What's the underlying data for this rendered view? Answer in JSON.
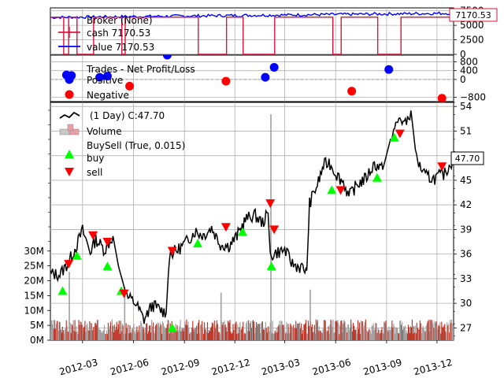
{
  "chart_data": [
    {
      "type": "line",
      "panel": "broker",
      "legend": {
        "title": "Broker (None)",
        "placement": "top-left",
        "entries": [
          "cash 7170.53",
          "value 7170.53"
        ]
      },
      "series": [
        {
          "name": "cash",
          "color": "#dc143c",
          "levels": [
            0,
            6400
          ]
        },
        {
          "name": "value",
          "color": "#0000ff",
          "levels": [
            6000,
            7200
          ]
        }
      ],
      "ylim": [
        0,
        8000
      ],
      "ytick_labels": [
        "0",
        "2500",
        "5000",
        "7500"
      ],
      "last_value_label": "7170.53",
      "grid": true
    },
    {
      "type": "scatter",
      "panel": "trades",
      "legend": {
        "title": "Trades - Net Profit/Loss",
        "placement": "top-left",
        "entries": [
          "Positive",
          "Negative"
        ]
      },
      "colors": {
        "positive": "#0000ff",
        "negative": "#ff0000"
      },
      "positive": [
        {
          "x": "2012-02-01",
          "y": 200
        },
        {
          "x": "2012-02-10",
          "y": 180
        },
        {
          "x": "2012-04-01",
          "y": 100
        },
        {
          "x": "2012-04-15",
          "y": 150
        },
        {
          "x": "2012-08-01",
          "y": 1100
        },
        {
          "x": "2013-01-25",
          "y": 100
        },
        {
          "x": "2013-02-10",
          "y": 550
        },
        {
          "x": "2013-09-05",
          "y": 450
        }
      ],
      "negative": [
        {
          "x": "2012-05-25",
          "y": -300
        },
        {
          "x": "2012-11-15",
          "y": -80
        },
        {
          "x": "2013-06-30",
          "y": -530
        },
        {
          "x": "2013-12-10",
          "y": -850
        }
      ],
      "ylim": [
        -1000,
        1100
      ],
      "ytick_labels": [
        "−800",
        "0",
        "400",
        "800"
      ],
      "grid": true
    },
    {
      "type": "line",
      "panel": "price",
      "legend": {
        "placement": "top-left",
        "entries": [
          "(1 Day) C:47.70",
          "Volume",
          "BuySell (True, 0.015)",
          "buy",
          "sell"
        ]
      },
      "colors": {
        "close": "#000000",
        "buy": "#00ff00",
        "sell": "#ff0000",
        "volume_up": "#c0392b",
        "volume_down": "#a0a0a0"
      },
      "x_range": [
        "2012-01-03",
        "2013-12-31"
      ],
      "xtick_labels": [
        "2012-03",
        "2012-06",
        "2012-09",
        "2012-12",
        "2013-03",
        "2013-06",
        "2013-09",
        "2013-12"
      ],
      "ylim": [
        25.5,
        54.5
      ],
      "ytick_labels": [
        "27",
        "30",
        "33",
        "36",
        "39",
        "42",
        "45",
        "48",
        "51",
        "54"
      ],
      "volume_ylim": [
        0,
        80000000
      ],
      "volume_tick_labels": [
        "0M",
        "5M",
        "10M",
        "15M",
        "20M",
        "25M",
        "30M"
      ],
      "last_price_label": "47.70",
      "close": [
        {
          "x": "2012-01-03",
          "y": 33.6
        },
        {
          "x": "2012-01-20",
          "y": 33.5
        },
        {
          "x": "2012-02-05",
          "y": 35.0
        },
        {
          "x": "2012-02-20",
          "y": 37.2
        },
        {
          "x": "2012-03-01",
          "y": 38.9
        },
        {
          "x": "2012-03-15",
          "y": 36.3
        },
        {
          "x": "2012-03-25",
          "y": 37.8
        },
        {
          "x": "2012-04-10",
          "y": 36.5
        },
        {
          "x": "2012-04-25",
          "y": 38.2
        },
        {
          "x": "2012-05-05",
          "y": 34.5
        },
        {
          "x": "2012-05-20",
          "y": 30.8
        },
        {
          "x": "2012-06-05",
          "y": 30.0
        },
        {
          "x": "2012-06-20",
          "y": 28.0
        },
        {
          "x": "2012-07-05",
          "y": 29.8
        },
        {
          "x": "2012-07-20",
          "y": 29.2
        },
        {
          "x": "2012-07-30",
          "y": 28.8
        },
        {
          "x": "2012-08-05",
          "y": 36.0
        },
        {
          "x": "2012-08-20",
          "y": 36.5
        },
        {
          "x": "2012-09-05",
          "y": 37.5
        },
        {
          "x": "2012-09-20",
          "y": 38.8
        },
        {
          "x": "2012-10-05",
          "y": 38.3
        },
        {
          "x": "2012-10-20",
          "y": 39.2
        },
        {
          "x": "2012-11-05",
          "y": 37.2
        },
        {
          "x": "2012-11-20",
          "y": 37.0
        },
        {
          "x": "2012-12-05",
          "y": 38.2
        },
        {
          "x": "2012-12-20",
          "y": 40.2
        },
        {
          "x": "2013-01-05",
          "y": 40.8
        },
        {
          "x": "2013-01-20",
          "y": 39.8
        },
        {
          "x": "2013-01-30",
          "y": 41.0
        },
        {
          "x": "2013-02-03",
          "y": 35.8
        },
        {
          "x": "2013-02-15",
          "y": 36.2
        },
        {
          "x": "2013-03-01",
          "y": 36.5
        },
        {
          "x": "2013-03-15",
          "y": 34.8
        },
        {
          "x": "2013-04-01",
          "y": 34.3
        },
        {
          "x": "2013-04-10",
          "y": 34.0
        },
        {
          "x": "2013-04-15",
          "y": 42.2
        },
        {
          "x": "2013-05-01",
          "y": 44.8
        },
        {
          "x": "2013-05-10",
          "y": 46.8
        },
        {
          "x": "2013-05-20",
          "y": 47.2
        },
        {
          "x": "2013-06-05",
          "y": 45.5
        },
        {
          "x": "2013-06-15",
          "y": 44.8
        },
        {
          "x": "2013-06-25",
          "y": 43.0
        },
        {
          "x": "2013-07-10",
          "y": 44.5
        },
        {
          "x": "2013-07-25",
          "y": 45.2
        },
        {
          "x": "2013-08-10",
          "y": 47.0
        },
        {
          "x": "2013-08-25",
          "y": 46.3
        },
        {
          "x": "2013-09-10",
          "y": 50.5
        },
        {
          "x": "2013-09-25",
          "y": 52.6
        },
        {
          "x": "2013-10-05",
          "y": 51.8
        },
        {
          "x": "2013-10-15",
          "y": 53.5
        },
        {
          "x": "2013-10-25",
          "y": 47.5
        },
        {
          "x": "2013-11-10",
          "y": 45.5
        },
        {
          "x": "2013-11-25",
          "y": 45.2
        },
        {
          "x": "2013-12-15",
          "y": 45.8
        },
        {
          "x": "2013-12-31",
          "y": 47.7
        }
      ],
      "buy": [
        {
          "x": "2012-01-25",
          "y": 31.5
        },
        {
          "x": "2012-02-20",
          "y": 35.8
        },
        {
          "x": "2012-04-15",
          "y": 34.5
        },
        {
          "x": "2012-05-10",
          "y": 31.5
        },
        {
          "x": "2012-08-10",
          "y": 27.0
        },
        {
          "x": "2012-09-25",
          "y": 37.3
        },
        {
          "x": "2012-12-15",
          "y": 38.7
        },
        {
          "x": "2013-02-05",
          "y": 34.5
        },
        {
          "x": "2013-05-25",
          "y": 43.8
        },
        {
          "x": "2013-08-15",
          "y": 45.3
        },
        {
          "x": "2013-09-15",
          "y": 50.2
        }
      ],
      "sell": [
        {
          "x": "2012-02-05",
          "y": 34.8
        },
        {
          "x": "2012-03-20",
          "y": 38.3
        },
        {
          "x": "2012-04-15",
          "y": 37.5
        },
        {
          "x": "2012-05-15",
          "y": 31.2
        },
        {
          "x": "2012-08-10",
          "y": 36.4
        },
        {
          "x": "2012-11-15",
          "y": 39.3
        },
        {
          "x": "2013-02-03",
          "y": 42.2
        },
        {
          "x": "2013-02-10",
          "y": 39.0
        },
        {
          "x": "2013-06-10",
          "y": 43.8
        },
        {
          "x": "2013-09-25",
          "y": 50.7
        },
        {
          "x": "2013-12-10",
          "y": 46.7
        }
      ],
      "volume_spikes": [
        {
          "x": "2012-02-05",
          "y": 23000000
        },
        {
          "x": "2012-05-15",
          "y": 18000000
        },
        {
          "x": "2012-11-05",
          "y": 16000000
        },
        {
          "x": "2013-02-03",
          "y": 76000000
        },
        {
          "x": "2013-04-15",
          "y": 17000000
        }
      ],
      "grid": true
    }
  ]
}
